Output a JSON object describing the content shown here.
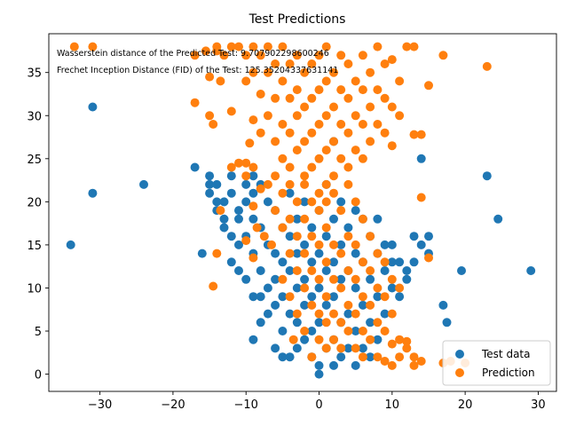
{
  "chart_data": {
    "type": "scatter",
    "title": "Test Predictions",
    "xlabel": "",
    "ylabel": "",
    "xlim": [
      -37,
      32.5
    ],
    "ylim": [
      -2,
      39.5
    ],
    "xticks": [
      -30,
      -20,
      -10,
      0,
      10,
      20,
      30
    ],
    "yticks": [
      0,
      5,
      10,
      15,
      20,
      25,
      30,
      35
    ],
    "grid": false,
    "legend_position": "lower-right",
    "annotations": [
      "Wasserstein distance of the Predicted Test: 9.707902298600246",
      "Frechet Inception Distance (FID) of the Test: 125.35204337631141"
    ],
    "series": [
      {
        "name": "Test data",
        "color": "#1f77b4",
        "points": [
          [
            -34,
            15
          ],
          [
            -31,
            31
          ],
          [
            -31,
            21
          ],
          [
            -24,
            22
          ],
          [
            -17,
            24
          ],
          [
            -16,
            14
          ],
          [
            -15,
            23
          ],
          [
            -15,
            22
          ],
          [
            -15,
            21
          ],
          [
            -14,
            22
          ],
          [
            -14,
            20
          ],
          [
            -14,
            19
          ],
          [
            -13,
            20
          ],
          [
            -13,
            18
          ],
          [
            -13,
            17
          ],
          [
            -12,
            16
          ],
          [
            -12,
            21
          ],
          [
            -12,
            23
          ],
          [
            -12,
            13
          ],
          [
            -11,
            19
          ],
          [
            -11,
            18
          ],
          [
            -11,
            15
          ],
          [
            -11,
            12
          ],
          [
            -10,
            22
          ],
          [
            -10,
            20
          ],
          [
            -10,
            16
          ],
          [
            -10,
            11
          ],
          [
            -9,
            23
          ],
          [
            -9,
            21
          ],
          [
            -9,
            18
          ],
          [
            -9,
            14
          ],
          [
            -9,
            9
          ],
          [
            -9,
            4
          ],
          [
            -8,
            22
          ],
          [
            -8,
            17
          ],
          [
            -8,
            12
          ],
          [
            -8,
            9
          ],
          [
            -8,
            6
          ],
          [
            -7,
            20
          ],
          [
            -7,
            15
          ],
          [
            -7,
            10
          ],
          [
            -7,
            7
          ],
          [
            -6,
            19
          ],
          [
            -6,
            14
          ],
          [
            -6,
            11
          ],
          [
            -6,
            8
          ],
          [
            -6,
            3
          ],
          [
            -5,
            17
          ],
          [
            -5,
            13
          ],
          [
            -5,
            9
          ],
          [
            -5,
            5
          ],
          [
            -5,
            2
          ],
          [
            -4,
            21
          ],
          [
            -4,
            16
          ],
          [
            -4,
            12
          ],
          [
            -4,
            7
          ],
          [
            -4,
            2
          ],
          [
            -3,
            18
          ],
          [
            -3,
            14
          ],
          [
            -3,
            10
          ],
          [
            -3,
            6
          ],
          [
            -3,
            3
          ],
          [
            -2,
            20
          ],
          [
            -2,
            15
          ],
          [
            -2,
            11
          ],
          [
            -2,
            8
          ],
          [
            -2,
            4
          ],
          [
            -1,
            17
          ],
          [
            -1,
            13
          ],
          [
            -1,
            9
          ],
          [
            -1,
            5
          ],
          [
            -1,
            2
          ],
          [
            0,
            19
          ],
          [
            0,
            14
          ],
          [
            0,
            10
          ],
          [
            0,
            6
          ],
          [
            0,
            1
          ],
          [
            0,
            0
          ],
          [
            1,
            22
          ],
          [
            1,
            16
          ],
          [
            1,
            12
          ],
          [
            1,
            8
          ],
          [
            1,
            3
          ],
          [
            2,
            27
          ],
          [
            2,
            18
          ],
          [
            2,
            13
          ],
          [
            2,
            9
          ],
          [
            2,
            4
          ],
          [
            2,
            1
          ],
          [
            3,
            20
          ],
          [
            3,
            15
          ],
          [
            3,
            11
          ],
          [
            3,
            6
          ],
          [
            3,
            2
          ],
          [
            4,
            17
          ],
          [
            4,
            12
          ],
          [
            4,
            7
          ],
          [
            4,
            3
          ],
          [
            5,
            19
          ],
          [
            5,
            14
          ],
          [
            5,
            10
          ],
          [
            5,
            5
          ],
          [
            5,
            1
          ],
          [
            6,
            18
          ],
          [
            6,
            13
          ],
          [
            6,
            8
          ],
          [
            6,
            3
          ],
          [
            7,
            16
          ],
          [
            7,
            11
          ],
          [
            7,
            6
          ],
          [
            7,
            2
          ],
          [
            8,
            18
          ],
          [
            8,
            14
          ],
          [
            8,
            9
          ],
          [
            8,
            4
          ],
          [
            9,
            15
          ],
          [
            9,
            12
          ],
          [
            9,
            7
          ],
          [
            10,
            15
          ],
          [
            10,
            13
          ],
          [
            10,
            10
          ],
          [
            11,
            13
          ],
          [
            11,
            9
          ],
          [
            12,
            12
          ],
          [
            12,
            11
          ],
          [
            13,
            16
          ],
          [
            13,
            13
          ],
          [
            14,
            25
          ],
          [
            14,
            15
          ],
          [
            15,
            16
          ],
          [
            15,
            14
          ],
          [
            17,
            8
          ],
          [
            17.5,
            6
          ],
          [
            19.5,
            12
          ],
          [
            23,
            23
          ],
          [
            24.5,
            18
          ],
          [
            29,
            12
          ]
        ]
      },
      {
        "name": "Prediction",
        "color": "#ff7f0e",
        "points": [
          [
            -33.5,
            38
          ],
          [
            -31,
            38
          ],
          [
            -17,
            37
          ],
          [
            -17,
            31.5
          ],
          [
            -15.5,
            37.5
          ],
          [
            -15,
            34.5
          ],
          [
            -15,
            30
          ],
          [
            -14.5,
            29
          ],
          [
            -14,
            38
          ],
          [
            -14,
            37.5
          ],
          [
            -13.5,
            34
          ],
          [
            -13,
            37
          ],
          [
            -12,
            38
          ],
          [
            -12,
            30.5
          ],
          [
            -11,
            38
          ],
          [
            -10,
            37
          ],
          [
            -10,
            34
          ],
          [
            -9.5,
            26.8
          ],
          [
            -9,
            38
          ],
          [
            -9,
            35
          ],
          [
            -9,
            29.5
          ],
          [
            -8,
            37
          ],
          [
            -8,
            32.5
          ],
          [
            -8,
            28
          ],
          [
            -7,
            38
          ],
          [
            -7,
            35
          ],
          [
            -7,
            30
          ],
          [
            -6,
            36
          ],
          [
            -6,
            32
          ],
          [
            -6,
            27
          ],
          [
            -5,
            38
          ],
          [
            -5,
            34
          ],
          [
            -5,
            29
          ],
          [
            -5,
            25
          ],
          [
            -4,
            36
          ],
          [
            -4,
            32
          ],
          [
            -4,
            28
          ],
          [
            -4,
            24
          ],
          [
            -3,
            37
          ],
          [
            -3,
            33
          ],
          [
            -3,
            30
          ],
          [
            -3,
            26
          ],
          [
            -2,
            35
          ],
          [
            -2,
            31
          ],
          [
            -2,
            27
          ],
          [
            -2,
            23
          ],
          [
            -1,
            36
          ],
          [
            -1,
            32
          ],
          [
            -1,
            28
          ],
          [
            -1,
            24
          ],
          [
            0,
            37
          ],
          [
            0,
            33
          ],
          [
            0,
            29
          ],
          [
            0,
            25
          ],
          [
            0,
            21
          ],
          [
            1,
            38
          ],
          [
            1,
            34
          ],
          [
            1,
            30
          ],
          [
            1,
            26
          ],
          [
            1,
            22
          ],
          [
            2,
            35
          ],
          [
            2,
            31
          ],
          [
            2,
            27
          ],
          [
            2,
            23
          ],
          [
            3,
            37
          ],
          [
            3,
            33
          ],
          [
            3,
            29
          ],
          [
            3,
            25
          ],
          [
            4,
            36
          ],
          [
            4,
            32
          ],
          [
            4,
            28
          ],
          [
            4,
            24
          ],
          [
            5,
            34
          ],
          [
            5,
            30
          ],
          [
            5,
            26
          ],
          [
            6,
            37
          ],
          [
            6,
            33
          ],
          [
            6,
            29
          ],
          [
            6,
            25
          ],
          [
            7,
            35
          ],
          [
            7,
            31
          ],
          [
            7,
            27
          ],
          [
            8,
            38
          ],
          [
            8,
            33
          ],
          [
            8,
            29
          ],
          [
            9,
            36
          ],
          [
            9,
            32
          ],
          [
            9,
            28
          ],
          [
            10,
            36.5
          ],
          [
            10,
            31
          ],
          [
            10,
            26.5
          ],
          [
            11,
            34
          ],
          [
            11,
            30
          ],
          [
            12,
            38
          ],
          [
            13,
            38
          ],
          [
            13,
            27.8
          ],
          [
            14,
            27.8
          ],
          [
            15,
            33.5
          ],
          [
            17,
            37
          ],
          [
            23,
            35.7
          ],
          [
            -12,
            24
          ],
          [
            -11,
            24.5
          ],
          [
            -10,
            24.5
          ],
          [
            -10,
            23
          ],
          [
            -9,
            24
          ],
          [
            -9,
            19.5
          ],
          [
            -8,
            21.5
          ],
          [
            -7,
            22
          ],
          [
            -6,
            23
          ],
          [
            -6,
            19
          ],
          [
            -5,
            21
          ],
          [
            -5,
            17
          ],
          [
            -4,
            22
          ],
          [
            -4,
            18
          ],
          [
            -4,
            14
          ],
          [
            -3,
            20
          ],
          [
            -3,
            16
          ],
          [
            -3,
            12
          ],
          [
            -2,
            22
          ],
          [
            -2,
            18
          ],
          [
            -2,
            14
          ],
          [
            -2,
            10
          ],
          [
            -1,
            20
          ],
          [
            -1,
            16
          ],
          [
            -1,
            12
          ],
          [
            -1,
            8
          ],
          [
            0,
            19
          ],
          [
            0,
            15
          ],
          [
            0,
            11
          ],
          [
            0,
            7
          ],
          [
            0,
            4
          ],
          [
            1,
            20
          ],
          [
            1,
            17
          ],
          [
            1,
            13
          ],
          [
            1,
            9
          ],
          [
            1,
            6
          ],
          [
            1,
            3
          ],
          [
            2,
            21
          ],
          [
            2,
            15
          ],
          [
            2,
            11
          ],
          [
            2,
            7
          ],
          [
            2,
            4
          ],
          [
            3,
            19
          ],
          [
            3,
            14
          ],
          [
            3,
            10
          ],
          [
            3,
            6
          ],
          [
            3,
            3
          ],
          [
            4,
            22
          ],
          [
            4,
            16
          ],
          [
            4,
            12
          ],
          [
            4,
            8
          ],
          [
            4,
            5
          ],
          [
            5,
            20
          ],
          [
            5,
            15
          ],
          [
            5,
            11
          ],
          [
            5,
            7
          ],
          [
            5,
            3
          ],
          [
            6,
            18
          ],
          [
            6,
            13
          ],
          [
            6,
            9
          ],
          [
            6,
            5
          ],
          [
            6,
            2
          ],
          [
            7,
            16
          ],
          [
            7,
            12
          ],
          [
            7,
            8
          ],
          [
            7,
            4
          ],
          [
            8,
            14
          ],
          [
            8,
            10
          ],
          [
            8,
            6
          ],
          [
            8,
            2
          ],
          [
            9,
            13
          ],
          [
            9,
            9
          ],
          [
            9,
            5
          ],
          [
            9,
            1.5
          ],
          [
            10,
            11
          ],
          [
            10,
            7
          ],
          [
            10,
            3.5
          ],
          [
            10,
            1
          ],
          [
            11,
            10
          ],
          [
            11,
            4
          ],
          [
            11,
            2
          ],
          [
            12,
            3.8
          ],
          [
            12,
            3
          ],
          [
            13,
            2
          ],
          [
            13,
            1
          ],
          [
            14,
            1.5
          ],
          [
            14,
            20.5
          ],
          [
            15,
            13.5
          ],
          [
            17,
            1.3
          ],
          [
            18,
            1.5
          ],
          [
            20,
            1.3
          ],
          [
            -14.5,
            10.2
          ],
          [
            -14,
            14
          ],
          [
            -13.5,
            19
          ],
          [
            -8.5,
            17
          ],
          [
            -7.5,
            16
          ],
          [
            -6.5,
            15
          ],
          [
            -5,
            11
          ],
          [
            -4,
            9
          ],
          [
            -3,
            7
          ],
          [
            -2,
            5
          ],
          [
            -1,
            2
          ],
          [
            -3.5,
            4
          ],
          [
            -10,
            15.5
          ],
          [
            -9,
            13.5
          ]
        ]
      }
    ]
  }
}
